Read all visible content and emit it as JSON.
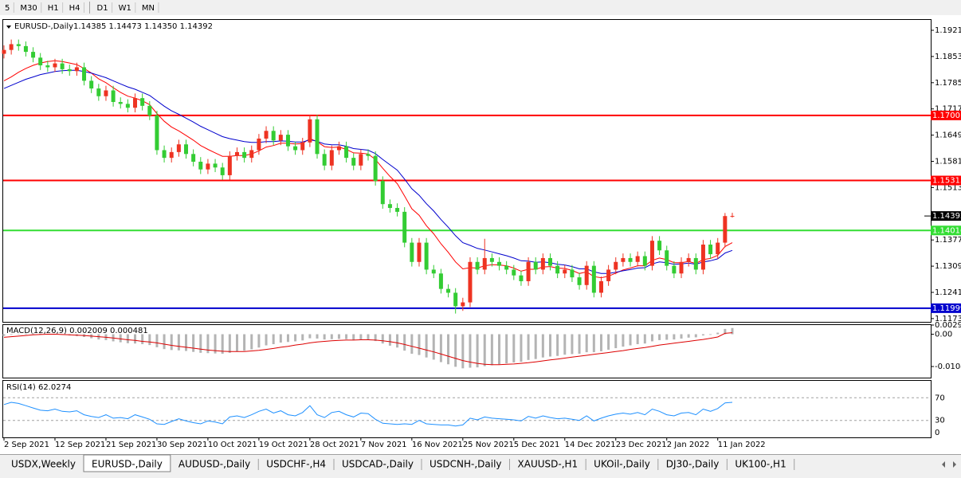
{
  "toolbar": {
    "timeframes": [
      "5",
      "M30",
      "H1",
      "H4",
      "D1",
      "W1",
      "MN"
    ]
  },
  "chart": {
    "header": {
      "symbol": "EURUSD-,Daily",
      "ohlc": "1.14385 1.14473 1.14350 1.14392"
    },
    "ylim": [
      1.11645,
      1.19479
    ],
    "yticks": [
      {
        "value": 1.1921,
        "label": "1.19210"
      },
      {
        "value": 1.1853,
        "label": "1.18530"
      },
      {
        "value": 1.1785,
        "label": "1.17850"
      },
      {
        "value": 1.1717,
        "label": "1.17170"
      },
      {
        "value": 1.1649,
        "label": "1.16490"
      },
      {
        "value": 1.1581,
        "label": "1.15810"
      },
      {
        "value": 1.1513,
        "label": "1.15130"
      },
      {
        "value": 1.1377,
        "label": "1.13770"
      },
      {
        "value": 1.1309,
        "label": "1.13090"
      },
      {
        "value": 1.1241,
        "label": "1.12410"
      },
      {
        "value": 1.1173,
        "label": "1.11730"
      }
    ],
    "candles": {
      "up_color": "#ee3322",
      "down_color": "#33cc33",
      "open": [
        1.186,
        1.187,
        1.1885,
        1.188,
        1.1865,
        1.185,
        1.183,
        1.1825,
        1.1835,
        1.182,
        1.1815,
        1.1825,
        1.179,
        1.177,
        1.175,
        1.1765,
        1.1735,
        1.173,
        1.172,
        1.1745,
        1.1725,
        1.17,
        1.161,
        1.159,
        1.1605,
        1.1625,
        1.16,
        1.158,
        1.156,
        1.1575,
        1.1565,
        1.1545,
        1.1595,
        1.1605,
        1.159,
        1.161,
        1.164,
        1.166,
        1.1635,
        1.165,
        1.162,
        1.161,
        1.163,
        1.169,
        1.16,
        1.157,
        1.161,
        1.162,
        1.159,
        1.157,
        1.16,
        1.1595,
        1.153,
        1.147,
        1.146,
        1.145,
        1.137,
        1.132,
        1.137,
        1.13,
        1.129,
        1.125,
        1.124,
        1.1205,
        1.1215,
        1.132,
        1.13,
        1.133,
        1.132,
        1.131,
        1.13,
        1.1285,
        1.127,
        1.132,
        1.13,
        1.133,
        1.131,
        1.129,
        1.13,
        1.128,
        1.126,
        1.131,
        1.124,
        1.127,
        1.13,
        1.132,
        1.133,
        1.132,
        1.1335,
        1.131,
        1.1375,
        1.135,
        1.131,
        1.129,
        1.132,
        1.133,
        1.13,
        1.1365,
        1.134,
        1.137,
        1.14385
      ],
      "high": [
        1.1882,
        1.1897,
        1.1897,
        1.1892,
        1.1877,
        1.1862,
        1.1842,
        1.1847,
        1.1847,
        1.1832,
        1.1837,
        1.1837,
        1.1802,
        1.1782,
        1.1777,
        1.1777,
        1.1747,
        1.1742,
        1.1757,
        1.1757,
        1.1737,
        1.1712,
        1.1622,
        1.1617,
        1.1637,
        1.1637,
        1.1612,
        1.1592,
        1.1587,
        1.1587,
        1.1577,
        1.1607,
        1.1617,
        1.1617,
        1.1622,
        1.1652,
        1.1672,
        1.1672,
        1.1662,
        1.1662,
        1.1632,
        1.1642,
        1.1702,
        1.1702,
        1.1612,
        1.1622,
        1.1632,
        1.1632,
        1.1602,
        1.1612,
        1.1612,
        1.1607,
        1.1542,
        1.1482,
        1.1472,
        1.1462,
        1.1382,
        1.1382,
        1.1382,
        1.1312,
        1.1302,
        1.1262,
        1.1252,
        1.1227,
        1.1332,
        1.1332,
        1.138,
        1.1342,
        1.1332,
        1.1322,
        1.1312,
        1.1297,
        1.1332,
        1.1332,
        1.1342,
        1.1342,
        1.1322,
        1.1312,
        1.1312,
        1.1292,
        1.1322,
        1.1322,
        1.1282,
        1.1312,
        1.1332,
        1.1342,
        1.1342,
        1.1347,
        1.1347,
        1.1387,
        1.1387,
        1.1362,
        1.1322,
        1.1332,
        1.1342,
        1.1342,
        1.1377,
        1.1377,
        1.1382,
        1.1447,
        1.14473
      ],
      "low": [
        1.1848,
        1.1858,
        1.1868,
        1.1853,
        1.1838,
        1.1818,
        1.1813,
        1.1813,
        1.1808,
        1.1803,
        1.1803,
        1.1778,
        1.1758,
        1.1738,
        1.1738,
        1.1723,
        1.1718,
        1.1708,
        1.1708,
        1.1713,
        1.1688,
        1.1598,
        1.1578,
        1.1578,
        1.1593,
        1.1588,
        1.1568,
        1.1548,
        1.1548,
        1.1553,
        1.1533,
        1.1533,
        1.1583,
        1.1578,
        1.1578,
        1.1598,
        1.1628,
        1.1623,
        1.1623,
        1.1608,
        1.1598,
        1.1598,
        1.1618,
        1.1588,
        1.1558,
        1.1558,
        1.1598,
        1.1578,
        1.1558,
        1.1558,
        1.1583,
        1.1518,
        1.1458,
        1.1448,
        1.1438,
        1.1358,
        1.1308,
        1.1308,
        1.1288,
        1.1278,
        1.1238,
        1.1228,
        1.1186,
        1.1193,
        1.1203,
        1.1288,
        1.1288,
        1.1308,
        1.1298,
        1.1288,
        1.1273,
        1.1258,
        1.1258,
        1.1288,
        1.1288,
        1.1298,
        1.1278,
        1.1278,
        1.1268,
        1.1248,
        1.1248,
        1.1228,
        1.1228,
        1.1258,
        1.1288,
        1.1308,
        1.1308,
        1.1308,
        1.1298,
        1.1298,
        1.1338,
        1.1298,
        1.1278,
        1.1278,
        1.1308,
        1.1288,
        1.1288,
        1.1328,
        1.1328,
        1.1358,
        1.1435
      ],
      "close": [
        1.187,
        1.1885,
        1.188,
        1.1865,
        1.185,
        1.183,
        1.1825,
        1.1835,
        1.182,
        1.1815,
        1.1825,
        1.179,
        1.177,
        1.175,
        1.1765,
        1.1735,
        1.173,
        1.172,
        1.1745,
        1.1725,
        1.17,
        1.161,
        1.159,
        1.1605,
        1.1625,
        1.16,
        1.158,
        1.156,
        1.1575,
        1.1565,
        1.1545,
        1.1595,
        1.1605,
        1.159,
        1.161,
        1.164,
        1.166,
        1.1635,
        1.165,
        1.162,
        1.161,
        1.163,
        1.169,
        1.16,
        1.157,
        1.161,
        1.162,
        1.159,
        1.157,
        1.16,
        1.1595,
        1.153,
        1.147,
        1.146,
        1.145,
        1.137,
        1.132,
        1.137,
        1.13,
        1.129,
        1.125,
        1.124,
        1.1205,
        1.1215,
        1.132,
        1.13,
        1.133,
        1.132,
        1.131,
        1.13,
        1.1285,
        1.127,
        1.132,
        1.13,
        1.133,
        1.131,
        1.129,
        1.13,
        1.128,
        1.126,
        1.131,
        1.124,
        1.127,
        1.13,
        1.132,
        1.133,
        1.132,
        1.1335,
        1.131,
        1.1375,
        1.135,
        1.131,
        1.129,
        1.132,
        1.133,
        1.13,
        1.1365,
        1.134,
        1.137,
        1.1439,
        1.14392
      ]
    },
    "ma": [
      {
        "color": "#ff0000",
        "values": [
          1.179,
          1.18,
          1.1812,
          1.1822,
          1.183,
          1.1836,
          1.184,
          1.1842,
          1.184,
          1.1836,
          1.1832,
          1.1822,
          1.181,
          1.1795,
          1.1785,
          1.1772,
          1.176,
          1.175,
          1.1745,
          1.1738,
          1.1728,
          1.1705,
          1.1685,
          1.167,
          1.166,
          1.1648,
          1.1636,
          1.1622,
          1.1612,
          1.1603,
          1.1594,
          1.1594,
          1.1596,
          1.1596,
          1.16,
          1.1608,
          1.1618,
          1.1622,
          1.1628,
          1.1628,
          1.1626,
          1.1627,
          1.164,
          1.1632,
          1.1619,
          1.1617,
          1.1618,
          1.1612,
          1.1603,
          1.1602,
          1.16,
          1.1586,
          1.1563,
          1.1542,
          1.1523,
          1.1491,
          1.1458,
          1.1441,
          1.1414,
          1.1393,
          1.1367,
          1.1345,
          1.132,
          1.1302,
          1.1305,
          1.1304,
          1.131,
          1.1313,
          1.1312,
          1.131,
          1.1304,
          1.1296,
          1.1301,
          1.1301,
          1.1307,
          1.1308,
          1.1304,
          1.1303,
          1.1298,
          1.129,
          1.1294,
          1.1282,
          1.1279,
          1.1283,
          1.1291,
          1.1299,
          1.1304,
          1.131,
          1.131,
          1.1324,
          1.133,
          1.1326,
          1.1318,
          1.1318,
          1.1321,
          1.1316,
          1.1326,
          1.1329,
          1.1337,
          1.136,
          1.137
        ]
      },
      {
        "color": "#0000cd",
        "values": [
          1.177,
          1.1778,
          1.1786,
          1.1794,
          1.18,
          1.1806,
          1.181,
          1.1814,
          1.1816,
          1.1817,
          1.1817,
          1.1814,
          1.181,
          1.1804,
          1.1798,
          1.179,
          1.1782,
          1.1774,
          1.1768,
          1.176,
          1.1752,
          1.1738,
          1.1724,
          1.1712,
          1.1703,
          1.1693,
          1.1683,
          1.1672,
          1.1663,
          1.1654,
          1.1645,
          1.164,
          1.1636,
          1.1632,
          1.163,
          1.163,
          1.1632,
          1.1632,
          1.1634,
          1.1633,
          1.1631,
          1.1631,
          1.1637,
          1.1633,
          1.1626,
          1.1624,
          1.1624,
          1.162,
          1.1614,
          1.1612,
          1.161,
          1.1601,
          1.1586,
          1.1572,
          1.1558,
          1.1535,
          1.151,
          1.1493,
          1.1471,
          1.1452,
          1.143,
          1.141,
          1.1388,
          1.137,
          1.1363,
          1.1355,
          1.1351,
          1.1346,
          1.1341,
          1.1336,
          1.133,
          1.1323,
          1.1322,
          1.1319,
          1.132,
          1.1318,
          1.1314,
          1.1312,
          1.1308,
          1.1302,
          1.1302,
          1.1294,
          1.129,
          1.129,
          1.1293,
          1.1297,
          1.13,
          1.1304,
          1.1305,
          1.1315,
          1.132,
          1.1318,
          1.1314,
          1.1315,
          1.1317,
          1.1314,
          1.132,
          1.1323,
          1.1328,
          1.1343,
          1.135
        ]
      }
    ],
    "levels": [
      {
        "value": 1.17001,
        "color": "#ff0000"
      },
      {
        "value": 1.15313,
        "color": "#ff0000"
      },
      {
        "value": 1.14016,
        "color": "#33dd33"
      },
      {
        "value": 1.11999,
        "color": "#0000cd"
      }
    ],
    "last_price": 1.14392,
    "macd": {
      "header": "MACD(12,26,9) 0.002009 0.000481",
      "ylim": [
        -0.014,
        0.00296
      ],
      "yticks": [
        {
          "value": 0.00296,
          "label": "0.002960"
        },
        {
          "value": 0,
          "label": "0.00"
        },
        {
          "value": -0.01042,
          "label": "-0.01042"
        }
      ],
      "histogram_color": "#b4b4b4",
      "signal_color": "#dd0000",
      "histogram": [
        -0.0005,
        -0.0002,
        0.0,
        0.0002,
        0.0003,
        0.0002,
        0.0001,
        0.0,
        -0.0002,
        -0.0004,
        -0.0006,
        -0.0009,
        -0.0013,
        -0.0017,
        -0.0019,
        -0.0023,
        -0.0026,
        -0.0029,
        -0.003,
        -0.0032,
        -0.0035,
        -0.0042,
        -0.0048,
        -0.0051,
        -0.0052,
        -0.0054,
        -0.0057,
        -0.006,
        -0.0061,
        -0.0062,
        -0.0063,
        -0.006,
        -0.0056,
        -0.0053,
        -0.0049,
        -0.0043,
        -0.0036,
        -0.0032,
        -0.0027,
        -0.0025,
        -0.0023,
        -0.002,
        -0.0013,
        -0.0014,
        -0.0017,
        -0.0016,
        -0.0015,
        -0.0016,
        -0.0018,
        -0.0017,
        -0.0017,
        -0.0022,
        -0.003,
        -0.0037,
        -0.0043,
        -0.0053,
        -0.0063,
        -0.0067,
        -0.0075,
        -0.0082,
        -0.009,
        -0.0097,
        -0.0105,
        -0.011,
        -0.0108,
        -0.0107,
        -0.0103,
        -0.01,
        -0.0097,
        -0.0094,
        -0.0091,
        -0.0089,
        -0.0083,
        -0.008,
        -0.0075,
        -0.0072,
        -0.007,
        -0.0066,
        -0.0064,
        -0.0063,
        -0.0058,
        -0.0058,
        -0.0055,
        -0.005,
        -0.0045,
        -0.004,
        -0.0036,
        -0.0032,
        -0.003,
        -0.0023,
        -0.0019,
        -0.0018,
        -0.0017,
        -0.0014,
        -0.0011,
        -0.001,
        -0.0004,
        -0.0002,
        0.0005,
        0.0017,
        0.002
      ],
      "signal": [
        -0.001,
        -0.0008,
        -0.0006,
        -0.0004,
        -0.0002,
        -0.0001,
        0.0,
        0.0,
        -0.0001,
        -0.0002,
        -0.0003,
        -0.0004,
        -0.0006,
        -0.0008,
        -0.001,
        -0.0012,
        -0.0015,
        -0.0018,
        -0.002,
        -0.0023,
        -0.0025,
        -0.0028,
        -0.0032,
        -0.0036,
        -0.0039,
        -0.0042,
        -0.0045,
        -0.0048,
        -0.0051,
        -0.0053,
        -0.0055,
        -0.0056,
        -0.0056,
        -0.0056,
        -0.0054,
        -0.0052,
        -0.0049,
        -0.0046,
        -0.0042,
        -0.0039,
        -0.0035,
        -0.0032,
        -0.0028,
        -0.0025,
        -0.0023,
        -0.0021,
        -0.002,
        -0.0019,
        -0.0019,
        -0.0018,
        -0.0018,
        -0.0019,
        -0.0021,
        -0.0024,
        -0.0028,
        -0.0033,
        -0.0039,
        -0.0045,
        -0.0051,
        -0.0057,
        -0.0064,
        -0.0071,
        -0.0078,
        -0.0085,
        -0.009,
        -0.0094,
        -0.0097,
        -0.0098,
        -0.0098,
        -0.0097,
        -0.0096,
        -0.0094,
        -0.0092,
        -0.0089,
        -0.0086,
        -0.0083,
        -0.008,
        -0.0077,
        -0.0074,
        -0.0071,
        -0.0068,
        -0.0065,
        -0.0062,
        -0.0059,
        -0.0056,
        -0.0053,
        -0.0049,
        -0.0046,
        -0.0043,
        -0.0039,
        -0.0035,
        -0.0032,
        -0.0029,
        -0.0026,
        -0.0023,
        -0.002,
        -0.0017,
        -0.0013,
        -0.0009,
        0.0003,
        0.0005
      ]
    },
    "rsi": {
      "header": "RSI(14) 62.0274",
      "ylim": [
        0,
        100
      ],
      "yticks": [
        70,
        30,
        0
      ],
      "color": "#1e90ff",
      "values": [
        58,
        62,
        60,
        56,
        52,
        48,
        47,
        50,
        46,
        45,
        47,
        40,
        37,
        35,
        40,
        34,
        35,
        33,
        40,
        36,
        32,
        24,
        23,
        28,
        33,
        29,
        26,
        24,
        29,
        27,
        24,
        36,
        38,
        35,
        40,
        46,
        50,
        43,
        47,
        40,
        38,
        44,
        56,
        40,
        35,
        44,
        46,
        40,
        36,
        43,
        42,
        32,
        25,
        24,
        23,
        24,
        23,
        30,
        24,
        23,
        22,
        22,
        20,
        22,
        34,
        31,
        36,
        34,
        33,
        32,
        31,
        29,
        37,
        34,
        38,
        35,
        33,
        34,
        32,
        30,
        38,
        29,
        34,
        38,
        41,
        43,
        41,
        44,
        40,
        50,
        46,
        40,
        38,
        43,
        44,
        40,
        50,
        46,
        51,
        61,
        62
      ]
    },
    "dates": [
      "2 Sep 2021",
      "12 Sep 2021",
      "21 Sep 2021",
      "30 Sep 2021",
      "10 Oct 2021",
      "19 Oct 2021",
      "28 Oct 2021",
      "7 Nov 2021",
      "16 Nov 2021",
      "25 Nov 2021",
      "5 Dec 2021",
      "14 Dec 2021",
      "23 Dec 2021",
      "2 Jan 2022",
      "11 Jan 2022"
    ]
  },
  "tabs": [
    "USDX,Weekly",
    "EURUSD-,Daily",
    "AUDUSD-,Daily",
    "USDCHF-,H4",
    "USDCAD-,Daily",
    "USDCNH-,Daily",
    "XAUUSD-,H1",
    "UKOil-,Daily",
    "DJ30-,Daily",
    "UK100-,H1"
  ],
  "active_tab": 1
}
